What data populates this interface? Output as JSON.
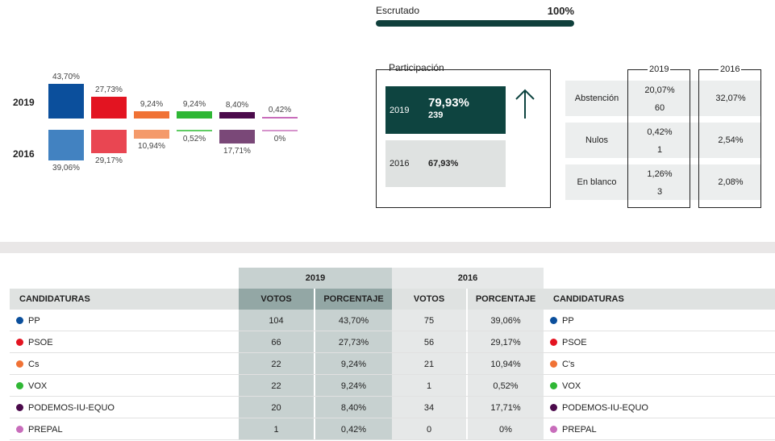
{
  "escrutado": {
    "label": "Escrutado",
    "value": "100%",
    "progress": 1.0
  },
  "chart": {
    "year_labels": [
      "2019",
      "2016"
    ],
    "parties": [
      {
        "name": "PP",
        "color": "#0b4f9c",
        "color2016": "#4282c1",
        "v2019": "43,70%",
        "v2016": "39,06%"
      },
      {
        "name": "PSOE",
        "color": "#e31421",
        "color2016": "#e94652",
        "v2019": "27,73%",
        "v2016": "29,17%"
      },
      {
        "name": "Cs",
        "color": "#f07235",
        "color2016": "#f49a6b",
        "v2019": "9,24%",
        "v2016": "10,94%"
      },
      {
        "name": "VOX",
        "color": "#2fb735",
        "color2016": "#5fcc63",
        "v2019": "9,24%",
        "v2016": "0,52%"
      },
      {
        "name": "PODEMOS-IU-EQUO",
        "color": "#4b0a4b",
        "color2016": "#7a4878",
        "v2019": "8,40%",
        "v2016": "17,71%"
      },
      {
        "name": "PREPAL",
        "color": "#c86dbb",
        "color2016": "#d694cc",
        "v2019": "0,42%",
        "v2016": "0%"
      }
    ]
  },
  "chart_data": {
    "type": "bar",
    "categories": [
      "PP",
      "PSOE",
      "Cs",
      "VOX",
      "PODEMOS-IU-EQUO",
      "PREPAL"
    ],
    "series": [
      {
        "name": "2019",
        "values": [
          43.7,
          27.73,
          9.24,
          9.24,
          8.4,
          0.42
        ]
      },
      {
        "name": "2016",
        "values": [
          39.06,
          29.17,
          10.94,
          0.52,
          17.71,
          0
        ]
      }
    ]
  },
  "participacion": {
    "title": "Participación",
    "y2019": {
      "year": "2019",
      "pct": "79,93%",
      "count": "239"
    },
    "y2016": {
      "year": "2016",
      "pct": "67,93%"
    },
    "arrow_icon": "arrow-up-icon"
  },
  "abstencion": {
    "year2019": "2019",
    "year2016": "2016",
    "rows": [
      {
        "label": "Abstención",
        "v2019_pct": "20,07%",
        "v2019_count": "60",
        "v2016": "32,07%"
      },
      {
        "label": "Nulos",
        "v2019_pct": "0,42%",
        "v2019_count": "1",
        "v2016": "2,54%"
      },
      {
        "label": "En blanco",
        "v2019_pct": "1,26%",
        "v2019_count": "3",
        "v2016": "2,08%"
      }
    ]
  },
  "results": {
    "year2019": "2019",
    "year2016": "2016",
    "headers": {
      "candidaturas": "CANDIDATURAS",
      "votos": "VOTOS",
      "porcentaje": "PORCENTAJE"
    },
    "rows": [
      {
        "party": "PP",
        "color": "#0b4f9c",
        "votos19": "104",
        "pct19": "43,70%",
        "votos16": "75",
        "pct16": "39,06%",
        "party16": "PP"
      },
      {
        "party": "PSOE",
        "color": "#e31421",
        "votos19": "66",
        "pct19": "27,73%",
        "votos16": "56",
        "pct16": "29,17%",
        "party16": "PSOE"
      },
      {
        "party": "Cs",
        "color": "#f07235",
        "votos19": "22",
        "pct19": "9,24%",
        "votos16": "21",
        "pct16": "10,94%",
        "party16": "C's"
      },
      {
        "party": "VOX",
        "color": "#2fb735",
        "votos19": "22",
        "pct19": "9,24%",
        "votos16": "1",
        "pct16": "0,52%",
        "party16": "VOX"
      },
      {
        "party": "PODEMOS-IU-EQUO",
        "color": "#4b0a4b",
        "votos19": "20",
        "pct19": "8,40%",
        "votos16": "34",
        "pct16": "17,71%",
        "party16": "PODEMOS-IU-EQUO"
      },
      {
        "party": "PREPAL",
        "color": "#c86dbb",
        "votos19": "1",
        "pct19": "0,42%",
        "votos16": "0",
        "pct16": "0%",
        "party16": "PREPAL"
      }
    ]
  }
}
